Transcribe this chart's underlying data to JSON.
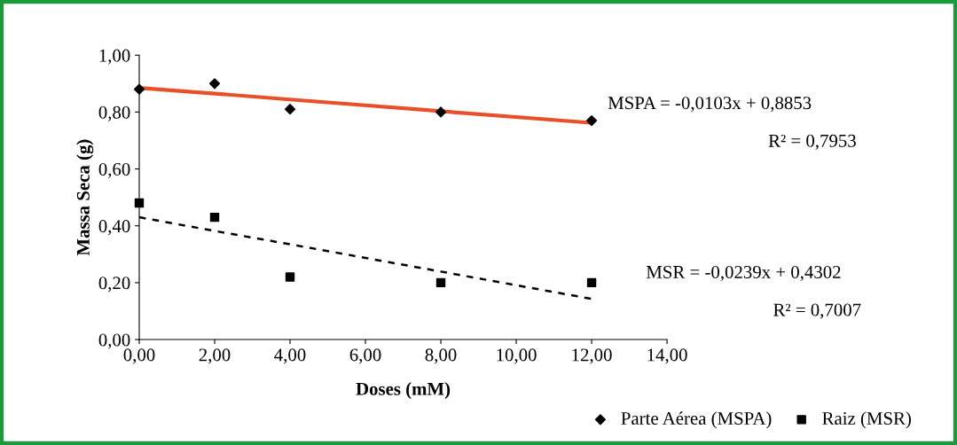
{
  "chart_data": {
    "type": "scatter",
    "xlabel": "Doses (mM)",
    "ylabel": "Massa Seca (g)",
    "x": [
      0,
      2,
      4,
      8,
      12
    ],
    "series": [
      {
        "name": "Parte Aérea (MSPA)",
        "color": "#000000",
        "marker": "diamond",
        "values": [
          0.88,
          0.9,
          0.81,
          0.8,
          0.77
        ]
      },
      {
        "name": "Raiz (MSR)",
        "color": "#000000",
        "marker": "square",
        "values": [
          0.48,
          0.43,
          0.22,
          0.2,
          0.2
        ]
      },
      {
        "type": "line",
        "color": "#e8502a",
        "line_style": "solid",
        "values": [
          0.885,
          0.865,
          0.844,
          0.803,
          0.762
        ]
      },
      {
        "type": "line",
        "color": "#000000",
        "line_style": "dashed",
        "values": [
          0.43,
          0.382,
          0.335,
          0.239,
          0.143
        ]
      }
    ],
    "xlim": [
      0,
      14
    ],
    "ylim": [
      0,
      1
    ],
    "xticks": [
      {
        "value": 0,
        "label": "0,00"
      },
      {
        "value": 2,
        "label": "2,00"
      },
      {
        "value": 4,
        "label": "4,00"
      },
      {
        "value": 6,
        "label": "6,00"
      },
      {
        "value": 8,
        "label": "8,00"
      },
      {
        "value": 10,
        "label": "10,00"
      },
      {
        "value": 12,
        "label": "12,00"
      },
      {
        "value": 14,
        "label": "14,00"
      }
    ],
    "yticks": [
      {
        "value": 0,
        "label": "0,00"
      },
      {
        "value": 0.2,
        "label": "0,20"
      },
      {
        "value": 0.4,
        "label": "0,40"
      },
      {
        "value": 0.6,
        "label": "0,60"
      },
      {
        "value": 0.8,
        "label": "0,80"
      },
      {
        "value": 1,
        "label": "1,00"
      }
    ],
    "annotations": [
      "MSPA = -0,0103x + 0,8853",
      "R² = 0,7953",
      "MSR = -0,0239x + 0,4302",
      "R² = 0,7007"
    ],
    "grid": false,
    "legend": "bottom right"
  }
}
